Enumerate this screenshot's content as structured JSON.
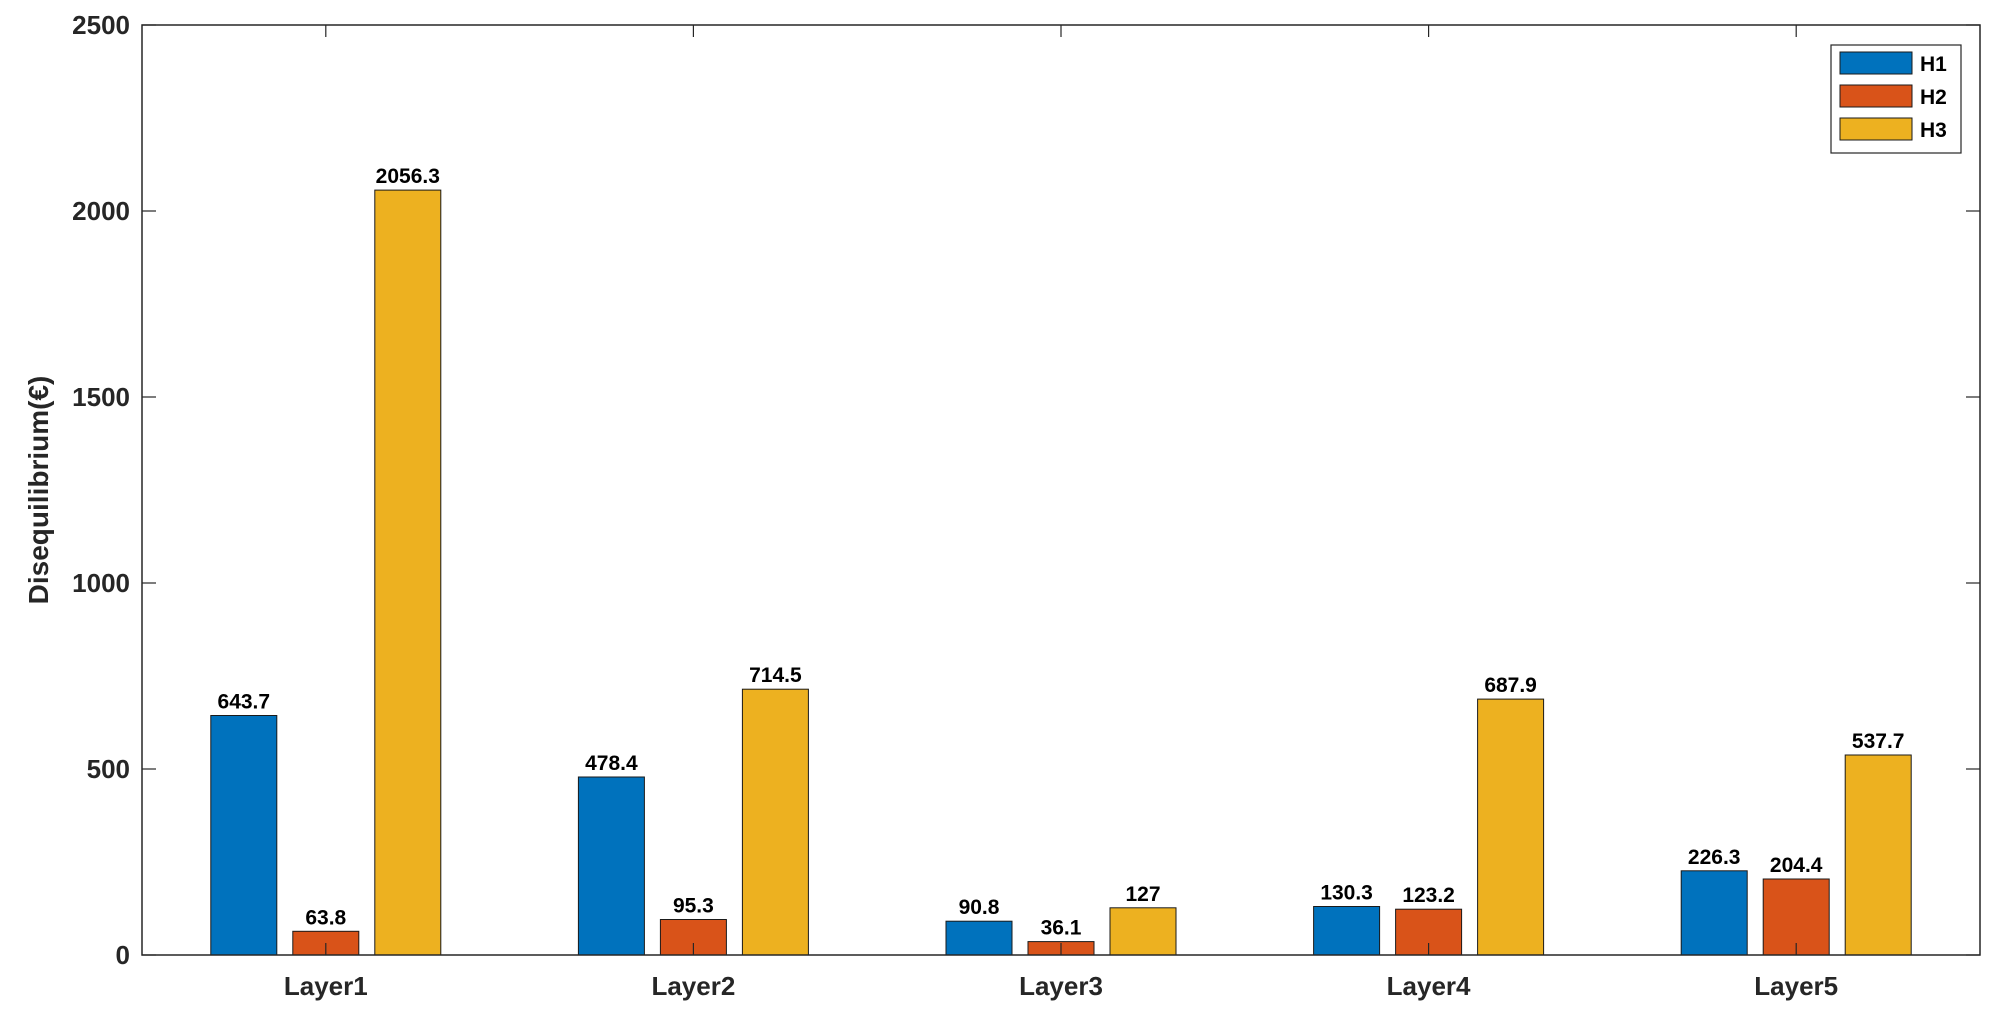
{
  "chart_data": {
    "type": "bar",
    "title": "",
    "xlabel": "",
    "ylabel": "Disequilibrium(€)",
    "categories": [
      "Layer1",
      "Layer2",
      "Layer3",
      "Layer4",
      "Layer5"
    ],
    "series": [
      {
        "name": "H1",
        "color": "#0072BD",
        "values": [
          643.7,
          478.4,
          90.8,
          130.3,
          226.3
        ],
        "labels": [
          "643.7",
          "478.4",
          "90.8",
          "130.3",
          "226.3"
        ]
      },
      {
        "name": "H2",
        "color": "#D95319",
        "values": [
          63.8,
          95.3,
          36.1,
          123.2,
          204.4
        ],
        "labels": [
          "63.8",
          "95.3",
          "36.1",
          "123.2",
          "204.4"
        ]
      },
      {
        "name": "H3",
        "color": "#EDB120",
        "values": [
          2056.3,
          714.5,
          127,
          687.9,
          537.7
        ],
        "labels": [
          "2056.3",
          "714.5",
          "127",
          "687.9",
          "537.7"
        ]
      }
    ],
    "ylim": [
      0,
      2500
    ],
    "yticks": [
      "0",
      "500",
      "1000",
      "1500",
      "2000",
      "2500"
    ],
    "grid": false,
    "legend_position": "top-right"
  }
}
